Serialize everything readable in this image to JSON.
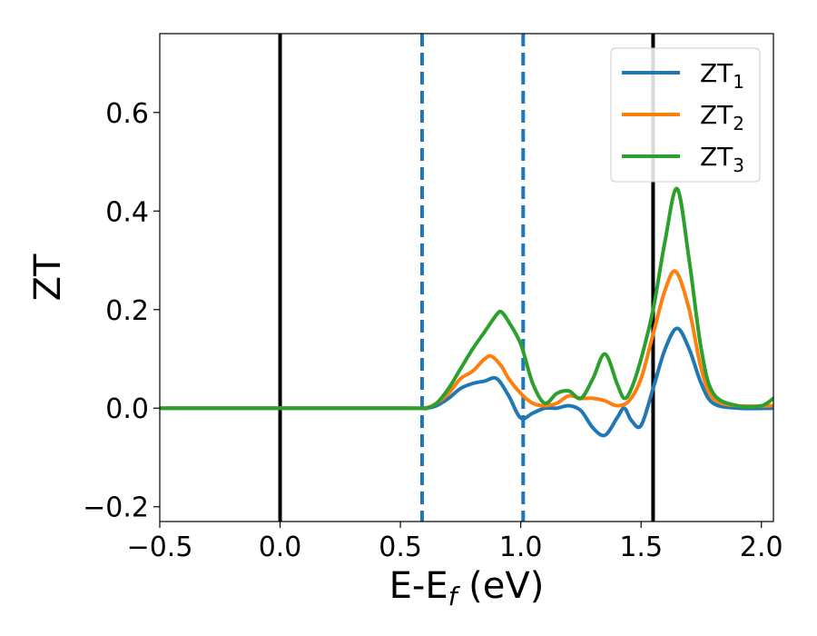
{
  "chart_data": {
    "type": "line",
    "title": "",
    "xlabel_main": "E-E",
    "xlabel_sub": "f",
    "xlabel_tail": " (eV)",
    "ylabel": "ZT",
    "xlim": [
      -0.5,
      2.05
    ],
    "ylim": [
      -0.23,
      0.76
    ],
    "grid": false,
    "legend_position": "top-right",
    "x_ticks": [
      {
        "value": -0.5,
        "label": "−0.5"
      },
      {
        "value": 0.0,
        "label": "0.0"
      },
      {
        "value": 0.5,
        "label": "0.5"
      },
      {
        "value": 1.0,
        "label": "1.0"
      },
      {
        "value": 1.5,
        "label": "1.5"
      },
      {
        "value": 2.0,
        "label": "2.0"
      }
    ],
    "y_ticks": [
      {
        "value": -0.2,
        "label": "−0.2"
      },
      {
        "value": 0.0,
        "label": "0.0"
      },
      {
        "value": 0.2,
        "label": "0.2"
      },
      {
        "value": 0.4,
        "label": "0.4"
      },
      {
        "value": 0.6,
        "label": "0.6"
      }
    ],
    "vlines": [
      {
        "x": 0.0,
        "color": "#000000",
        "style": "solid"
      },
      {
        "x": 1.55,
        "color": "#000000",
        "style": "solid"
      },
      {
        "x": 0.59,
        "color": "#1f77b4",
        "style": "dashed"
      },
      {
        "x": 1.01,
        "color": "#1f77b4",
        "style": "dashed"
      }
    ],
    "series": [
      {
        "name_main": "ZT",
        "name_sub": "1",
        "color": "#1f77b4",
        "x": [
          -0.5,
          0.5,
          0.6,
          0.65,
          0.7,
          0.75,
          0.8,
          0.85,
          0.9,
          0.95,
          1.0,
          1.05,
          1.1,
          1.15,
          1.2,
          1.25,
          1.3,
          1.35,
          1.4,
          1.43,
          1.46,
          1.5,
          1.55,
          1.6,
          1.65,
          1.7,
          1.75,
          1.8,
          1.9,
          2.05
        ],
        "y": [
          0.0,
          0.0,
          0.0,
          0.005,
          0.02,
          0.04,
          0.05,
          0.055,
          0.06,
          0.025,
          -0.02,
          -0.01,
          0.0,
          0.0,
          0.005,
          -0.005,
          -0.04,
          -0.055,
          -0.02,
          0.0,
          -0.025,
          -0.035,
          0.04,
          0.12,
          0.162,
          0.12,
          0.05,
          0.01,
          0.0,
          0.0
        ]
      },
      {
        "name_main": "ZT",
        "name_sub": "2",
        "color": "#ff7f0e",
        "x": [
          -0.5,
          0.5,
          0.6,
          0.65,
          0.7,
          0.75,
          0.8,
          0.85,
          0.88,
          0.92,
          0.95,
          1.0,
          1.05,
          1.1,
          1.15,
          1.2,
          1.25,
          1.3,
          1.35,
          1.4,
          1.45,
          1.5,
          1.55,
          1.6,
          1.645,
          1.7,
          1.75,
          1.8,
          1.9,
          2.05
        ],
        "y": [
          0.0,
          0.0,
          0.0,
          0.01,
          0.03,
          0.06,
          0.075,
          0.1,
          0.105,
          0.085,
          0.06,
          0.03,
          0.01,
          0.005,
          0.01,
          0.025,
          0.02,
          0.02,
          0.015,
          0.005,
          0.015,
          0.06,
          0.15,
          0.24,
          0.277,
          0.2,
          0.08,
          0.02,
          0.005,
          0.005
        ]
      },
      {
        "name_main": "ZT",
        "name_sub": "3",
        "color": "#2ca02c",
        "x": [
          -0.5,
          0.5,
          0.6,
          0.65,
          0.7,
          0.75,
          0.8,
          0.85,
          0.9,
          0.92,
          0.95,
          1.0,
          1.05,
          1.1,
          1.15,
          1.2,
          1.25,
          1.3,
          1.35,
          1.4,
          1.43,
          1.46,
          1.5,
          1.55,
          1.6,
          1.65,
          1.7,
          1.75,
          1.8,
          1.9,
          2.0,
          2.05
        ],
        "y": [
          0.0,
          0.0,
          0.0,
          0.01,
          0.04,
          0.08,
          0.12,
          0.155,
          0.19,
          0.195,
          0.175,
          0.13,
          0.05,
          0.01,
          0.03,
          0.035,
          0.02,
          0.06,
          0.11,
          0.05,
          0.02,
          0.04,
          0.1,
          0.2,
          0.34,
          0.445,
          0.3,
          0.12,
          0.03,
          0.005,
          0.005,
          0.02
        ]
      }
    ]
  }
}
